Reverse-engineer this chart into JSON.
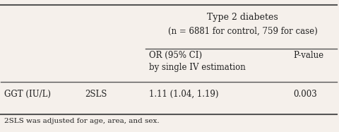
{
  "bg_color": "#f5f0eb",
  "header_group": "Type 2 diabetes",
  "header_subgroup": "(n = 6881 for control, 759 for case)",
  "col_headers": [
    "OR (95% CI)\nby single IV estimation",
    "P-value"
  ],
  "row_label1": "GGT (IU/L)",
  "row_label2": "2SLS",
  "row_value1": "1.11 (1.04, 1.19)",
  "row_value2": "0.003",
  "footnote": "2SLS was adjusted for age, area, and sex.",
  "font_size": 8.5,
  "font_size_header": 9.0,
  "font_size_footnote": 7.5
}
